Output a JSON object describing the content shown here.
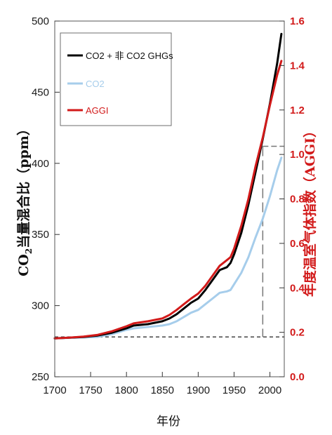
{
  "chart_data": {
    "type": "line",
    "title": "",
    "xlabel": "年份",
    "ylabel_left": "CO2当量混合比（ppm）",
    "ylabel_left_prefix": "CO",
    "ylabel_left_sub": "2",
    "ylabel_left_suffix": "当量混合比（ppm）",
    "ylabel_right": "年度温室气体指数（AGGI）",
    "xlim": [
      1700,
      2020
    ],
    "ylim_left": [
      250,
      500
    ],
    "ylim_right": [
      0.0,
      1.6
    ],
    "x_ticks": [
      "1700",
      "1750",
      "1800",
      "1850",
      "1900",
      "1950",
      "2000"
    ],
    "x_tick_values": [
      1700,
      1750,
      1800,
      1850,
      1900,
      1950,
      2000
    ],
    "y_left_ticks": [
      "250",
      "300",
      "350",
      "400",
      "450",
      "500"
    ],
    "y_left_tick_values": [
      250,
      300,
      350,
      400,
      450,
      500
    ],
    "y_right_ticks": [
      "0.0",
      "0.2",
      "0.4",
      "0.6",
      "0.8",
      "1.0",
      "1.2",
      "1.4",
      "1.6"
    ],
    "y_right_tick_values": [
      0.0,
      0.2,
      0.4,
      0.6,
      0.8,
      1.0,
      1.2,
      1.4,
      1.6
    ],
    "legend_position": "top-left",
    "grid": false,
    "reference_lines": {
      "baseline_ppm": 278,
      "aggi_one_year": 1990,
      "aggi_one_ppm": 412
    },
    "series": [
      {
        "name": "CO2 +  非 CO2 GHGs",
        "color": "#000000",
        "x": [
          1700,
          1720,
          1740,
          1760,
          1780,
          1800,
          1810,
          1830,
          1850,
          1860,
          1870,
          1880,
          1890,
          1900,
          1910,
          1920,
          1930,
          1940,
          1945,
          1950,
          1960,
          1970,
          1980,
          1990,
          2000,
          2010,
          2016
        ],
        "y": [
          277,
          277.5,
          278,
          279,
          281,
          284,
          286,
          287,
          289,
          291,
          294,
          298,
          302,
          305,
          311,
          318,
          325,
          327,
          330,
          336,
          351,
          371,
          394,
          417,
          442,
          470,
          491
        ]
      },
      {
        "name": "CO2",
        "color": "#a6cdeb",
        "x": [
          1700,
          1720,
          1740,
          1760,
          1780,
          1800,
          1810,
          1830,
          1850,
          1860,
          1870,
          1880,
          1890,
          1900,
          1910,
          1920,
          1930,
          1940,
          1945,
          1950,
          1960,
          1970,
          1980,
          1990,
          2000,
          2010,
          2016
        ],
        "y": [
          277,
          277.3,
          277.6,
          278,
          280,
          283,
          284,
          285,
          286,
          287,
          289,
          292,
          295,
          297,
          301,
          305,
          309,
          310,
          311,
          315,
          323,
          334,
          348,
          361,
          377,
          395,
          404
        ]
      },
      {
        "name": "AGGI",
        "color": "#d21a1a",
        "x": [
          1700,
          1720,
          1740,
          1760,
          1780,
          1800,
          1810,
          1830,
          1850,
          1860,
          1870,
          1880,
          1890,
          1900,
          1910,
          1920,
          1930,
          1940,
          1945,
          1950,
          1960,
          1970,
          1980,
          1990,
          2000,
          2010,
          2016
        ],
        "y": [
          277,
          277.5,
          278.2,
          279.5,
          282,
          285.5,
          287.5,
          289,
          291,
          293.5,
          297,
          301,
          305,
          308.5,
          314,
          321,
          328,
          332,
          334,
          340,
          356,
          375,
          398,
          418,
          441,
          462,
          472
        ]
      }
    ]
  }
}
